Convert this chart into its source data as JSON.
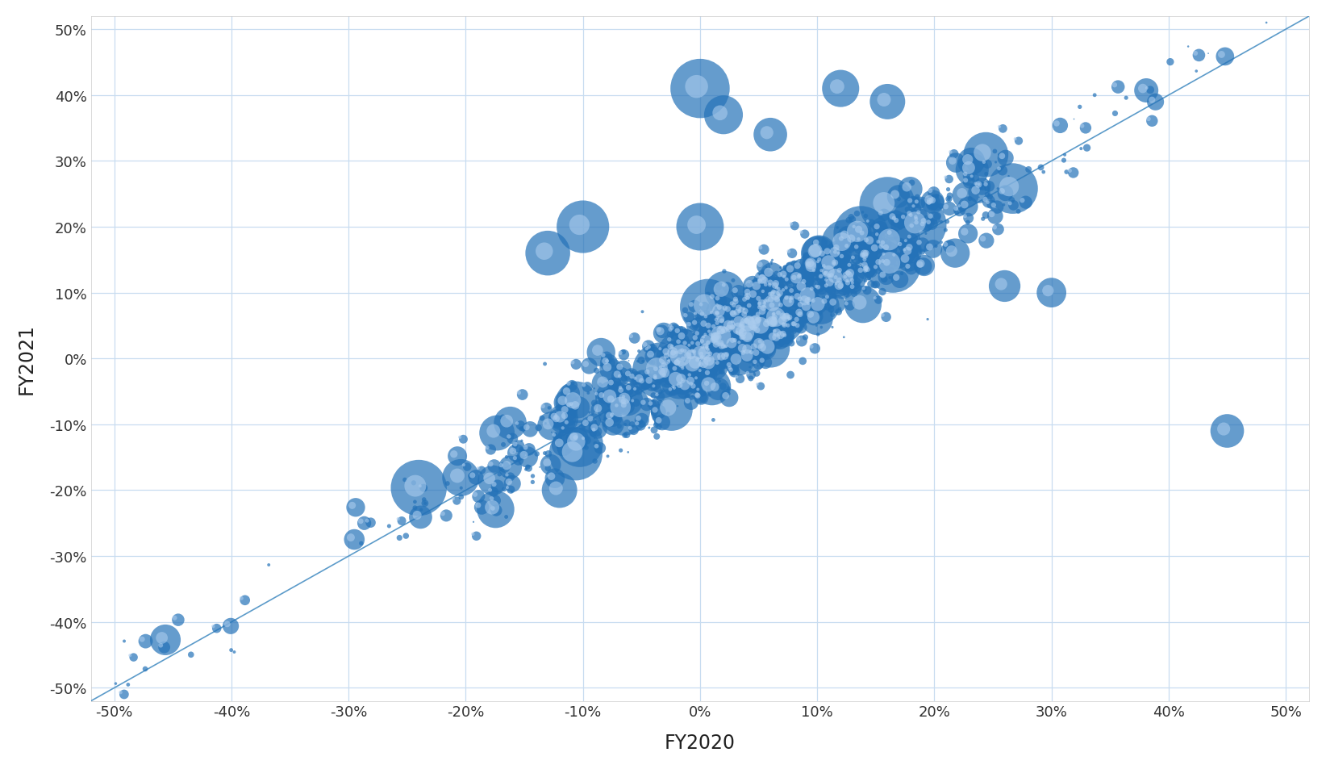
{
  "xlabel": "FY2020",
  "ylabel": "FY2021",
  "xlim": [
    -0.52,
    0.52
  ],
  "ylim": [
    -0.52,
    0.52
  ],
  "xticks": [
    -0.5,
    -0.4,
    -0.3,
    -0.2,
    -0.1,
    0.0,
    0.1,
    0.2,
    0.3,
    0.4,
    0.5
  ],
  "yticks": [
    -0.5,
    -0.4,
    -0.3,
    -0.2,
    -0.1,
    0.0,
    0.1,
    0.2,
    0.3,
    0.4,
    0.5
  ],
  "bubble_color": "#2472B8",
  "bubble_alpha": 0.75,
  "line_color": "#4A90C4",
  "background_color": "#FFFFFF",
  "grid_color": "#C8DCF0",
  "n_points": 1500,
  "seed": 99
}
